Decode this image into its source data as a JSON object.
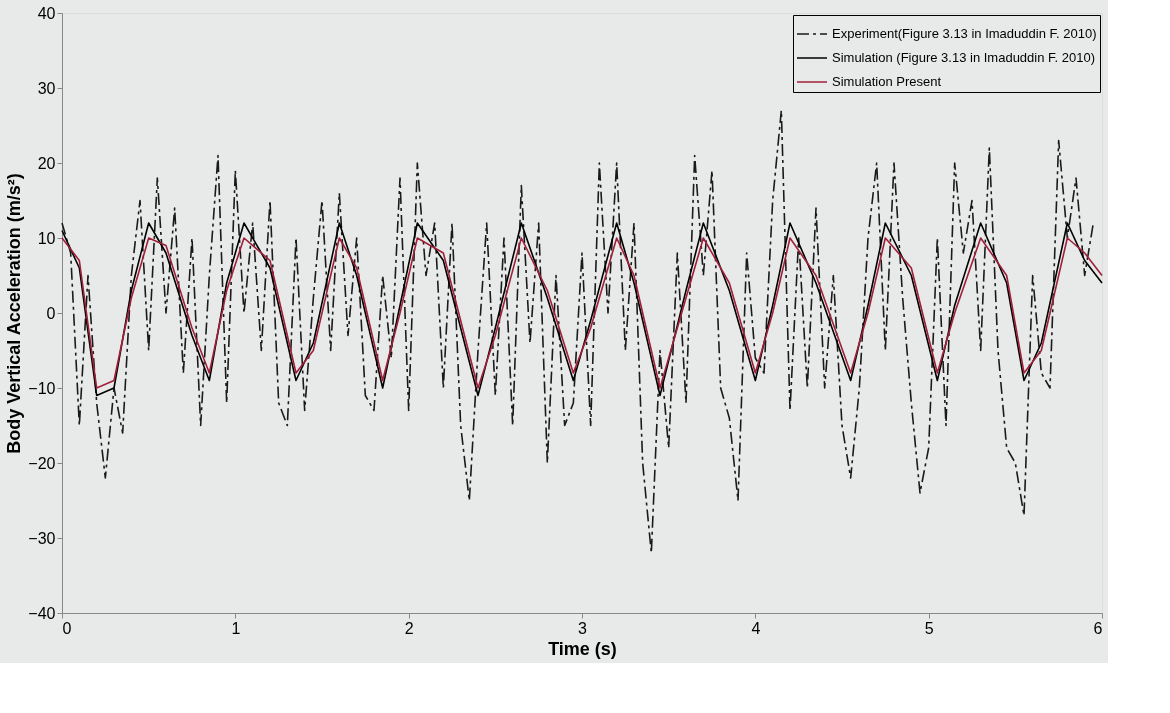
{
  "chart_data": {
    "type": "line",
    "xlabel": "Time (s)",
    "ylabel": "Body Vertical Acceleration (m/s²)",
    "xlim": [
      0,
      6
    ],
    "xticks": [
      0,
      1,
      2,
      3,
      4,
      5,
      6
    ],
    "ylim": [
      -40,
      40
    ],
    "yticks": [
      -40,
      -30,
      -20,
      -10,
      0,
      10,
      20,
      30,
      40
    ],
    "grid": false,
    "legend": "top right",
    "series": [
      {
        "name": "Experiment(Figure 3.13 in Imaduddin F. 2010)",
        "color": "#1a1a1a",
        "line_style": "dashed",
        "x": [
          0,
          0.05,
          0.1,
          0.15,
          0.2,
          0.25,
          0.3,
          0.35,
          0.4,
          0.45,
          0.5,
          0.55,
          0.6,
          0.65,
          0.7,
          0.75,
          0.8,
          0.85,
          0.9,
          0.95,
          1.0,
          1.05,
          1.1,
          1.15,
          1.2,
          1.25,
          1.3,
          1.35,
          1.4,
          1.45,
          1.5,
          1.55,
          1.6,
          1.65,
          1.7,
          1.75,
          1.8,
          1.85,
          1.9,
          1.95,
          2.0,
          2.05,
          2.1,
          2.15,
          2.2,
          2.25,
          2.3,
          2.35,
          2.4,
          2.45,
          2.5,
          2.55,
          2.6,
          2.65,
          2.7,
          2.75,
          2.8,
          2.85,
          2.9,
          2.95,
          3.0,
          3.05,
          3.1,
          3.15,
          3.2,
          3.25,
          3.3,
          3.35,
          3.4,
          3.45,
          3.5,
          3.55,
          3.6,
          3.65,
          3.7,
          3.75,
          3.8,
          3.85,
          3.9,
          3.95,
          4.0,
          4.05,
          4.1,
          4.15,
          4.2,
          4.25,
          4.3,
          4.35,
          4.4,
          4.45,
          4.5,
          4.55,
          4.6,
          4.65,
          4.7,
          4.75,
          4.8,
          4.85,
          4.9,
          4.95,
          5.0,
          5.05,
          5.1,
          5.15,
          5.2,
          5.25,
          5.3,
          5.35,
          5.4,
          5.45,
          5.5,
          5.55,
          5.6,
          5.65,
          5.7,
          5.75,
          5.8,
          5.85,
          5.9,
          5.95
        ],
        "values": [
          12,
          8,
          -15,
          5,
          -12,
          -22,
          -10,
          -16,
          5,
          15,
          -5,
          18,
          0,
          14,
          -8,
          10,
          -15,
          5,
          21,
          -12,
          19,
          0,
          12,
          -5,
          15,
          -12,
          -15,
          10,
          -13,
          2,
          15,
          -5,
          16,
          -3,
          10,
          -11,
          -13,
          5,
          -6,
          18,
          -13,
          20,
          5,
          12,
          -10,
          12,
          -15,
          -25,
          -5,
          12,
          -11,
          10,
          -15,
          17,
          -4,
          12,
          -20,
          5,
          -15,
          -12,
          8,
          -15,
          20,
          0,
          20,
          -5,
          12,
          -20,
          -32,
          -5,
          -18,
          8,
          -12,
          21,
          5,
          19,
          -10,
          -14,
          -25,
          8,
          -6,
          -8,
          15,
          27,
          -13,
          10,
          -10,
          14,
          -10,
          5,
          -15,
          -22,
          -10,
          10,
          20,
          -5,
          20,
          2,
          -12,
          -24,
          -18,
          10,
          -15,
          20,
          8,
          15,
          -5,
          22,
          -5,
          -18,
          -20,
          -27,
          5,
          -8,
          -10,
          23,
          10,
          18,
          5,
          12
        ]
      },
      {
        "name": "Simulation (Figure 3.13 in Imaduddin F. 2010)",
        "color": "#000000",
        "line_style": "solid",
        "x": [
          0,
          0.1,
          0.2,
          0.3,
          0.4,
          0.5,
          0.6,
          0.75,
          0.85,
          0.95,
          1.05,
          1.2,
          1.35,
          1.45,
          1.6,
          1.7,
          1.85,
          1.95,
          2.05,
          2.2,
          2.4,
          2.5,
          2.65,
          2.8,
          2.95,
          3.05,
          3.2,
          3.3,
          3.45,
          3.6,
          3.7,
          3.85,
          4.0,
          4.1,
          4.2,
          4.35,
          4.55,
          4.65,
          4.75,
          4.9,
          5.05,
          5.15,
          5.3,
          5.45,
          5.55,
          5.65,
          5.8,
          5.9,
          6.0
        ],
        "values": [
          11,
          6,
          -11,
          -10,
          3,
          12,
          8,
          -3,
          -9,
          4,
          12,
          6,
          -9,
          -4,
          12,
          5,
          -10,
          1,
          12,
          7,
          -11,
          -2,
          12,
          2,
          -9,
          -1,
          12,
          4,
          -11,
          3,
          12,
          3,
          -9,
          1,
          12,
          4,
          -9,
          1,
          12,
          5,
          -9,
          1,
          12,
          4,
          -9,
          -4,
          12,
          7,
          4
        ]
      },
      {
        "name": "Simulation Present",
        "color": "#a0203a",
        "line_style": "solid",
        "x": [
          0,
          0.1,
          0.2,
          0.3,
          0.4,
          0.5,
          0.6,
          0.75,
          0.85,
          0.95,
          1.05,
          1.2,
          1.35,
          1.45,
          1.6,
          1.7,
          1.85,
          1.95,
          2.05,
          2.2,
          2.4,
          2.5,
          2.65,
          2.8,
          2.95,
          3.05,
          3.2,
          3.3,
          3.45,
          3.6,
          3.7,
          3.85,
          4.0,
          4.1,
          4.2,
          4.35,
          4.55,
          4.65,
          4.75,
          4.9,
          5.05,
          5.15,
          5.3,
          5.45,
          5.55,
          5.65,
          5.8,
          5.9,
          6.0
        ],
        "values": [
          10,
          7,
          -10,
          -9,
          2,
          10,
          9,
          -2,
          -8,
          3,
          10,
          7,
          -8,
          -5,
          10,
          6,
          -9,
          0,
          10,
          8,
          -10,
          -3,
          10,
          3,
          -8,
          -2,
          10,
          5,
          -10,
          2,
          10,
          4,
          -8,
          0,
          10,
          5,
          -8,
          0,
          10,
          6,
          -8,
          0,
          10,
          5,
          -8,
          -5,
          10,
          8,
          5
        ]
      }
    ]
  }
}
